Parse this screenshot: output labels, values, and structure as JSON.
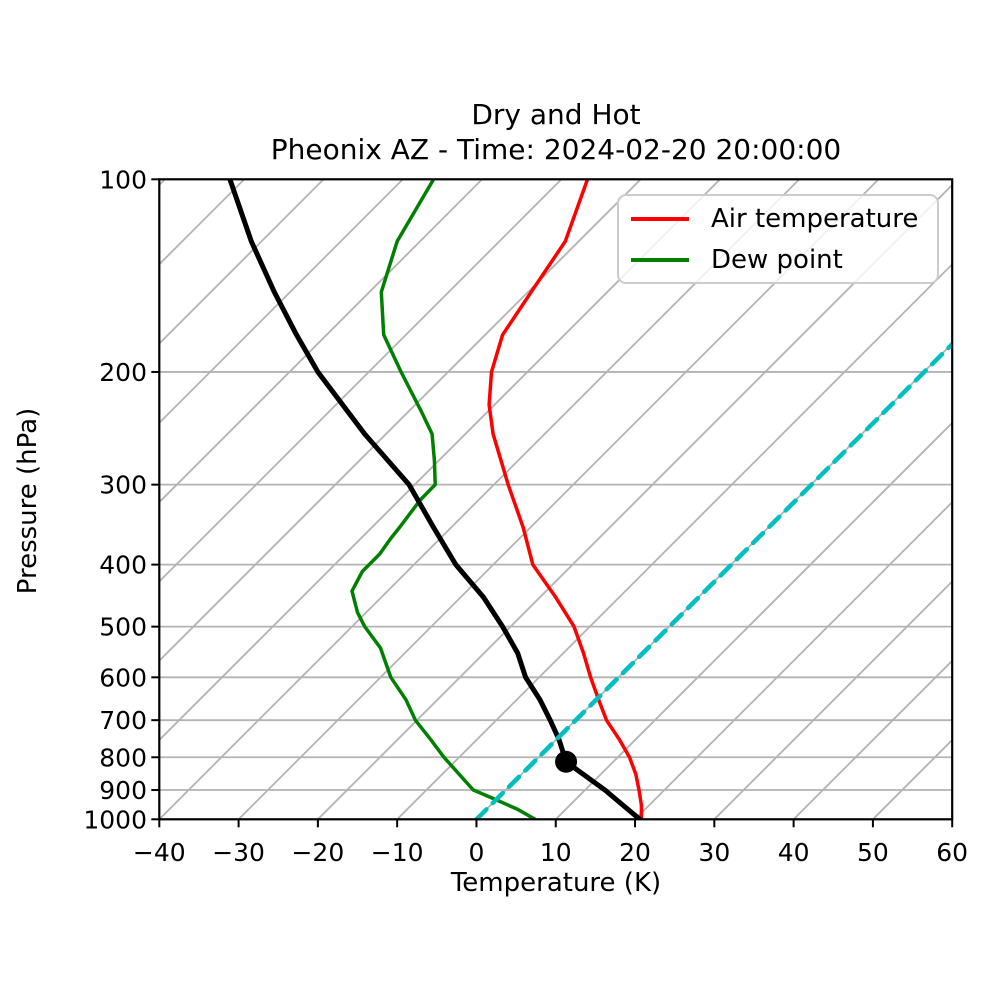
{
  "title": {
    "line1": "Dry and Hot",
    "line2": "Pheonix AZ - Time: 2024-02-20 20:00:00"
  },
  "axes": {
    "x_label": "Temperature (K)",
    "y_label": "Pressure (hPa)",
    "x_range": [
      -40,
      60
    ],
    "x_ticks": [
      -40,
      -30,
      -20,
      -10,
      0,
      10,
      20,
      30,
      40,
      50,
      60
    ],
    "y_scale": "log",
    "y_range_hpa": [
      1000,
      100
    ],
    "y_ticks": [
      100,
      200,
      300,
      400,
      500,
      600,
      700,
      800,
      900,
      1000
    ]
  },
  "legend": {
    "position": "upper right",
    "items": [
      {
        "label": "Air temperature",
        "color": "#ff0000"
      },
      {
        "label": "Dew point",
        "color": "#008000"
      }
    ]
  },
  "chart_data": {
    "type": "line",
    "variant": "skew-t-log-p",
    "note": "x values are positions read off the skewed temperature axis at each pressure level",
    "grid": {
      "color": "#b3b3b3",
      "horizontal_at_hpa": [
        200,
        300,
        400,
        500,
        600,
        700,
        800,
        900
      ],
      "skew_isotherms_from": -120,
      "skew_isotherms_to": 60,
      "skew_isotherms_step": 10,
      "skew_angle_deg": 45
    },
    "series": [
      {
        "name": "Air temperature",
        "color": "#ff0000",
        "width": 3.5,
        "dashed": false,
        "points": [
          [
            100,
            14.0
          ],
          [
            125,
            11.2
          ],
          [
            150,
            6.9
          ],
          [
            175,
            3.3
          ],
          [
            200,
            1.9
          ],
          [
            225,
            1.6
          ],
          [
            250,
            2.1
          ],
          [
            300,
            4.0
          ],
          [
            350,
            5.9
          ],
          [
            400,
            7.1
          ],
          [
            450,
            10.0
          ],
          [
            500,
            12.3
          ],
          [
            550,
            13.5
          ],
          [
            600,
            14.4
          ],
          [
            650,
            15.4
          ],
          [
            700,
            16.4
          ],
          [
            750,
            18.0
          ],
          [
            800,
            19.3
          ],
          [
            850,
            20.1
          ],
          [
            900,
            20.5
          ],
          [
            950,
            20.8
          ],
          [
            1000,
            20.8
          ]
        ]
      },
      {
        "name": "Dew point",
        "color": "#008000",
        "width": 3.5,
        "dashed": false,
        "points": [
          [
            100,
            -5.4
          ],
          [
            125,
            -10.0
          ],
          [
            150,
            -12.0
          ],
          [
            175,
            -11.7
          ],
          [
            200,
            -9.5
          ],
          [
            230,
            -7.0
          ],
          [
            250,
            -5.6
          ],
          [
            275,
            -5.3
          ],
          [
            300,
            -5.2
          ],
          [
            317,
            -7.1
          ],
          [
            350,
            -9.7
          ],
          [
            364,
            -10.8
          ],
          [
            385,
            -12.2
          ],
          [
            410,
            -14.4
          ],
          [
            440,
            -15.7
          ],
          [
            475,
            -15.0
          ],
          [
            500,
            -14.1
          ],
          [
            540,
            -12.1
          ],
          [
            600,
            -10.8
          ],
          [
            650,
            -8.9
          ],
          [
            700,
            -7.7
          ],
          [
            750,
            -5.8
          ],
          [
            800,
            -4.1
          ],
          [
            850,
            -2.2
          ],
          [
            900,
            -0.4
          ],
          [
            930,
            2.3
          ],
          [
            965,
            5.2
          ],
          [
            1000,
            7.4
          ]
        ]
      },
      {
        "name": "Parcel profile",
        "color": "#000000",
        "width": 5,
        "dashed": false,
        "points": [
          [
            100,
            -31.1
          ],
          [
            125,
            -28.4
          ],
          [
            150,
            -25.5
          ],
          [
            175,
            -22.7
          ],
          [
            200,
            -20.0
          ],
          [
            250,
            -14.1
          ],
          [
            300,
            -8.5
          ],
          [
            350,
            -5.4
          ],
          [
            400,
            -2.6
          ],
          [
            450,
            0.9
          ],
          [
            500,
            3.3
          ],
          [
            550,
            5.2
          ],
          [
            600,
            6.2
          ],
          [
            650,
            8.0
          ],
          [
            700,
            9.3
          ],
          [
            750,
            10.4
          ],
          [
            813,
            11.3
          ],
          [
            900,
            16.2
          ],
          [
            1000,
            20.6
          ]
        ]
      },
      {
        "name": "Highlighted isotherm",
        "color": "#00bfbf",
        "width": 4.5,
        "dashed": true,
        "points": [
          [
            1000,
            0
          ],
          [
            180.9,
            60
          ]
        ]
      }
    ],
    "marker": {
      "name": "parcel-dot",
      "pressure_hpa": 813,
      "x_axis_value": 11.3,
      "color": "#000000",
      "radius": 11
    }
  }
}
